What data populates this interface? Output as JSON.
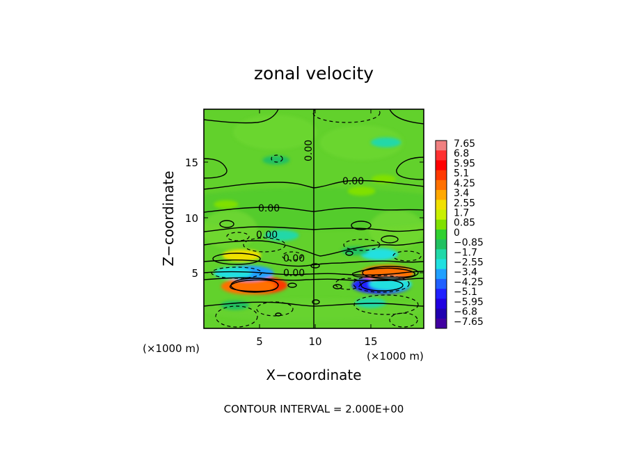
{
  "chart_data": {
    "type": "heatmap",
    "title": "zonal velocity",
    "xlabel": "X−coordinate",
    "ylabel": "Z−coordinate",
    "x_unit": "(×1000 m)",
    "y_unit": "(×1000 m)",
    "xlim": [
      0,
      19.8
    ],
    "ylim": [
      0,
      19.8
    ],
    "x_ticks": [
      "5",
      "10",
      "15"
    ],
    "y_ticks": [
      "5",
      "10",
      "15"
    ],
    "footer": "CONTOUR INTERVAL = 2.000E+00",
    "contour_labels": [
      "0.00",
      "0.00",
      "0.00",
      "0.00",
      "0.00",
      "0.00"
    ],
    "colorbar": {
      "levels": [
        "7.65",
        "6.8",
        "5.95",
        "5.1",
        "4.25",
        "3.4",
        "2.55",
        "1.7",
        "0.85",
        "0",
        "−0.85",
        "−1.7",
        "−2.55",
        "−3.4",
        "−4.25",
        "−5.1",
        "−5.95",
        "−6.8",
        "−7.65"
      ],
      "colors": [
        "#f08080",
        "#ff3030",
        "#ff0000",
        "#ff3800",
        "#ff7000",
        "#ffa800",
        "#f0e000",
        "#c8f000",
        "#80e000",
        "#30d030",
        "#20c060",
        "#20d8a8",
        "#20e0e0",
        "#20a0ff",
        "#2060ff",
        "#2020ff",
        "#2000e0",
        "#2000b0",
        "#4000a0"
      ]
    },
    "features": [
      {
        "x": 4.7,
        "z": 3.9,
        "value": 5.2
      },
      {
        "x": 4.0,
        "z": 3.8,
        "value": 4.2
      },
      {
        "x": 3.4,
        "z": 6.6,
        "value": 2.3
      },
      {
        "x": 4.0,
        "z": 5.0,
        "value": -3.8
      },
      {
        "x": 2.6,
        "z": 5.0,
        "value": -2.2
      },
      {
        "x": 16.0,
        "z": 3.9,
        "value": -4.8
      },
      {
        "x": 16.5,
        "z": 5.0,
        "value": 4.0
      },
      {
        "x": 16.8,
        "z": 4.0,
        "value": -2.8
      },
      {
        "x": 15.8,
        "z": 6.7,
        "value": -2.2
      },
      {
        "x": 15.0,
        "z": 2.3,
        "value": -1.4
      },
      {
        "x": 16.4,
        "z": 16.8,
        "value": -1.3
      },
      {
        "x": 14.2,
        "z": 12.4,
        "value": 1.0
      },
      {
        "x": 2.8,
        "z": 2.1,
        "value": -1.1
      },
      {
        "x": 6.5,
        "z": 15.2,
        "value": -0.9
      },
      {
        "x": 2.0,
        "z": 11.2,
        "value": 0.6
      },
      {
        "x": 16.2,
        "z": 13.5,
        "value": 0.6
      },
      {
        "x": 7.0,
        "z": 8.4,
        "value": -1.8
      },
      {
        "x": 13.6,
        "z": 7.0,
        "value": -0.9
      }
    ]
  }
}
